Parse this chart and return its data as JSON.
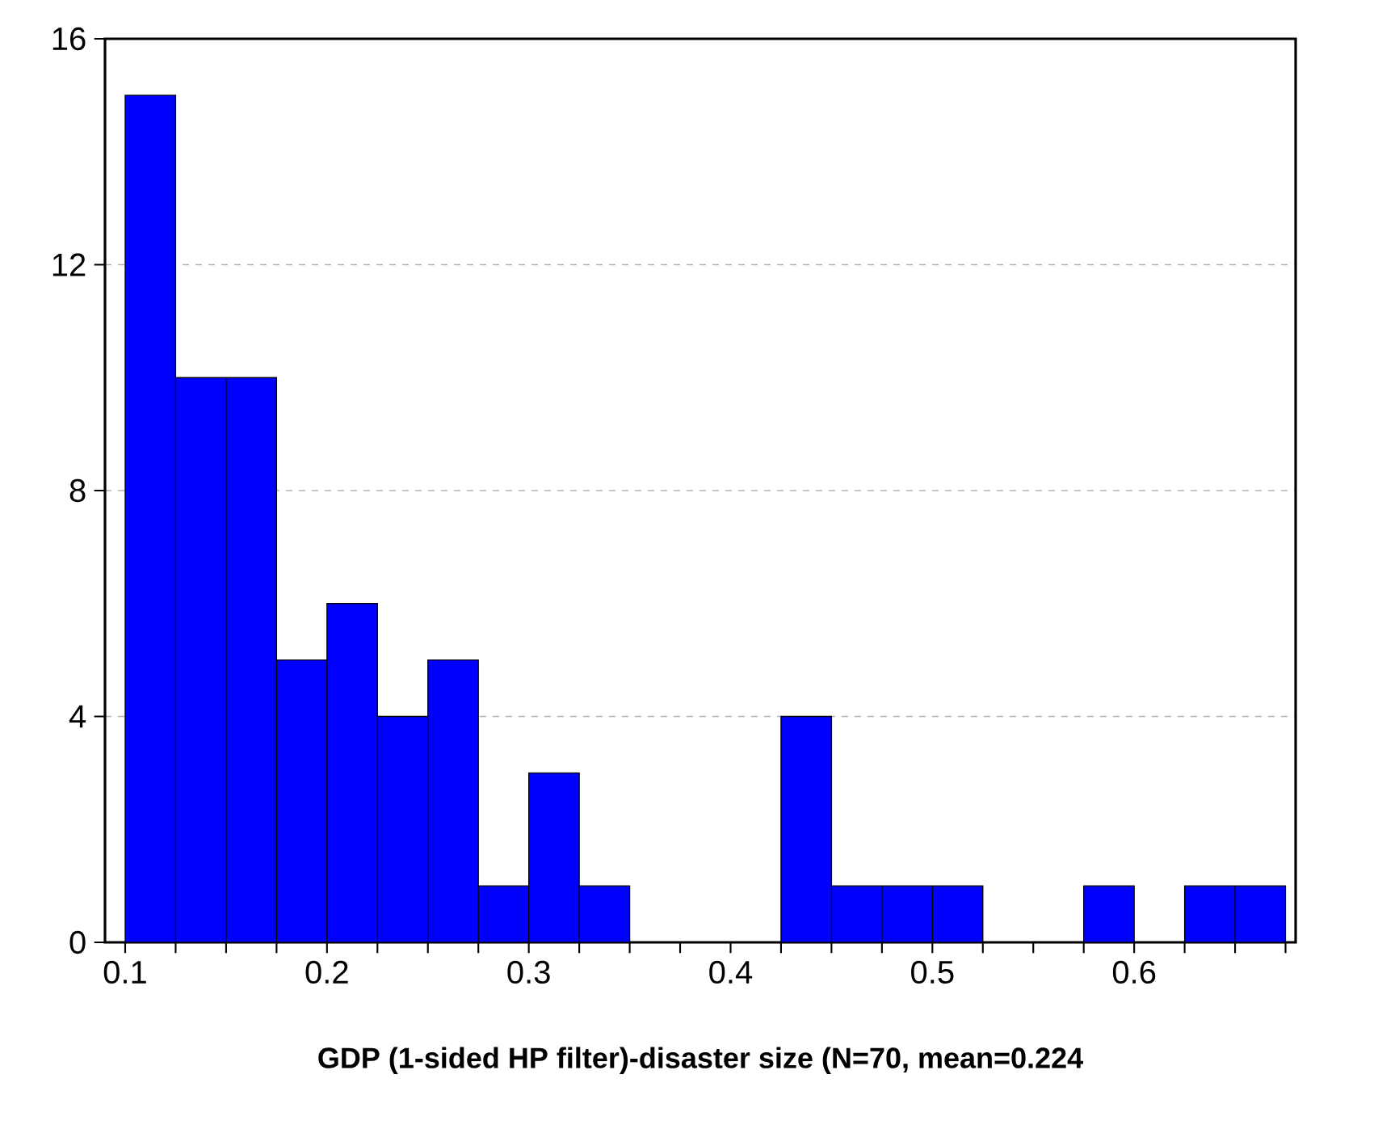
{
  "chart_data": {
    "type": "histogram",
    "xlabel": "GDP (1-sided HP filter)-disaster size (N=70, mean=0.224",
    "bins": [
      0.1,
      0.125,
      0.15,
      0.175,
      0.2,
      0.225,
      0.25,
      0.275,
      0.3,
      0.325,
      0.35,
      0.375,
      0.4,
      0.425,
      0.45,
      0.475,
      0.5,
      0.525,
      0.55,
      0.575,
      0.6,
      0.625,
      0.65,
      0.675
    ],
    "values": [
      15,
      10,
      10,
      5,
      6,
      4,
      5,
      1,
      3,
      1,
      0,
      0,
      0,
      4,
      1,
      1,
      1,
      0,
      0,
      1,
      0,
      1,
      1
    ],
    "color": "#0000ff",
    "xlim": [
      0.09,
      0.68
    ],
    "ylim": [
      0,
      16
    ],
    "xticks": [
      0.1,
      {
        "value": 0.125,
        "label": null
      },
      {
        "value": 0.15,
        "label": null
      },
      {
        "value": 0.175,
        "label": null
      },
      0.2,
      {
        "value": 0.225,
        "label": null
      },
      {
        "value": 0.25,
        "label": null
      },
      {
        "value": 0.275,
        "label": null
      },
      0.3,
      {
        "value": 0.325,
        "label": null
      },
      {
        "value": 0.35,
        "label": null
      },
      {
        "value": 0.375,
        "label": null
      },
      0.4,
      {
        "value": 0.425,
        "label": null
      },
      {
        "value": 0.45,
        "label": null
      },
      {
        "value": 0.475,
        "label": null
      },
      0.5,
      {
        "value": 0.525,
        "label": null
      },
      {
        "value": 0.55,
        "label": null
      },
      {
        "value": 0.575,
        "label": null
      },
      0.6,
      {
        "value": 0.625,
        "label": null
      },
      {
        "value": 0.65,
        "label": null
      },
      {
        "value": 0.675,
        "label": null
      }
    ],
    "yticks": [
      0,
      4,
      8,
      12,
      16
    ],
    "grid": "y",
    "line_style": "solid"
  }
}
